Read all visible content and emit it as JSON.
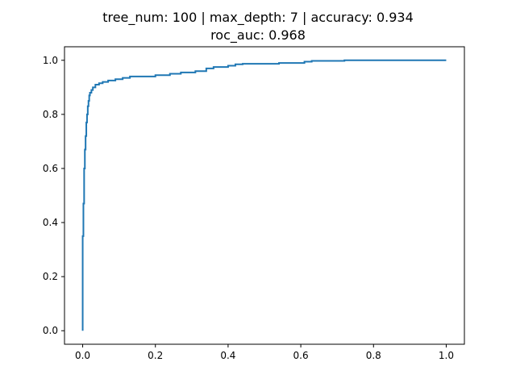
{
  "chart_data": {
    "type": "line",
    "title_lines": [
      "tree_num: 100 | max_depth: 7 | accuracy: 0.934",
      "roc_auc: 0.968"
    ],
    "xlabel": "",
    "ylabel": "",
    "xlim": [
      -0.05,
      1.05
    ],
    "ylim": [
      -0.05,
      1.05
    ],
    "x_ticks": [
      0.0,
      0.2,
      0.4,
      0.6,
      0.8,
      1.0
    ],
    "x_tick_labels": [
      "0.0",
      "0.2",
      "0.4",
      "0.6",
      "0.8",
      "1.0"
    ],
    "y_ticks": [
      0.0,
      0.2,
      0.4,
      0.6,
      0.8,
      1.0
    ],
    "y_tick_labels": [
      "0.0",
      "0.2",
      "0.4",
      "0.6",
      "0.8",
      "1.0"
    ],
    "grid": false,
    "line_color": "#1f77b4",
    "series": [
      {
        "x": [
          0.0,
          0.0,
          0.002,
          0.002,
          0.004,
          0.004,
          0.006,
          0.006,
          0.008,
          0.008,
          0.01,
          0.01,
          0.012,
          0.012,
          0.014,
          0.014,
          0.016,
          0.016,
          0.018,
          0.018,
          0.02,
          0.02,
          0.024,
          0.024,
          0.028,
          0.028,
          0.035,
          0.035,
          0.045,
          0.045,
          0.055,
          0.055,
          0.07,
          0.07,
          0.09,
          0.09,
          0.11,
          0.11,
          0.13,
          0.13,
          0.2,
          0.2,
          0.24,
          0.24,
          0.27,
          0.27,
          0.31,
          0.31,
          0.34,
          0.34,
          0.36,
          0.36,
          0.4,
          0.4,
          0.42,
          0.42,
          0.44,
          0.44,
          0.54,
          0.54,
          0.61,
          0.61,
          0.63,
          0.63,
          0.72,
          0.72,
          1.0
        ],
        "y": [
          0.0,
          0.35,
          0.35,
          0.47,
          0.47,
          0.6,
          0.6,
          0.67,
          0.67,
          0.72,
          0.72,
          0.77,
          0.77,
          0.8,
          0.8,
          0.83,
          0.83,
          0.85,
          0.85,
          0.87,
          0.87,
          0.88,
          0.88,
          0.89,
          0.89,
          0.9,
          0.9,
          0.91,
          0.91,
          0.915,
          0.915,
          0.92,
          0.92,
          0.925,
          0.925,
          0.93,
          0.93,
          0.935,
          0.935,
          0.94,
          0.94,
          0.945,
          0.945,
          0.95,
          0.95,
          0.955,
          0.955,
          0.96,
          0.96,
          0.97,
          0.97,
          0.975,
          0.975,
          0.98,
          0.98,
          0.985,
          0.985,
          0.987,
          0.987,
          0.99,
          0.99,
          0.995,
          0.995,
          0.998,
          0.998,
          1.0,
          1.0
        ]
      }
    ]
  }
}
